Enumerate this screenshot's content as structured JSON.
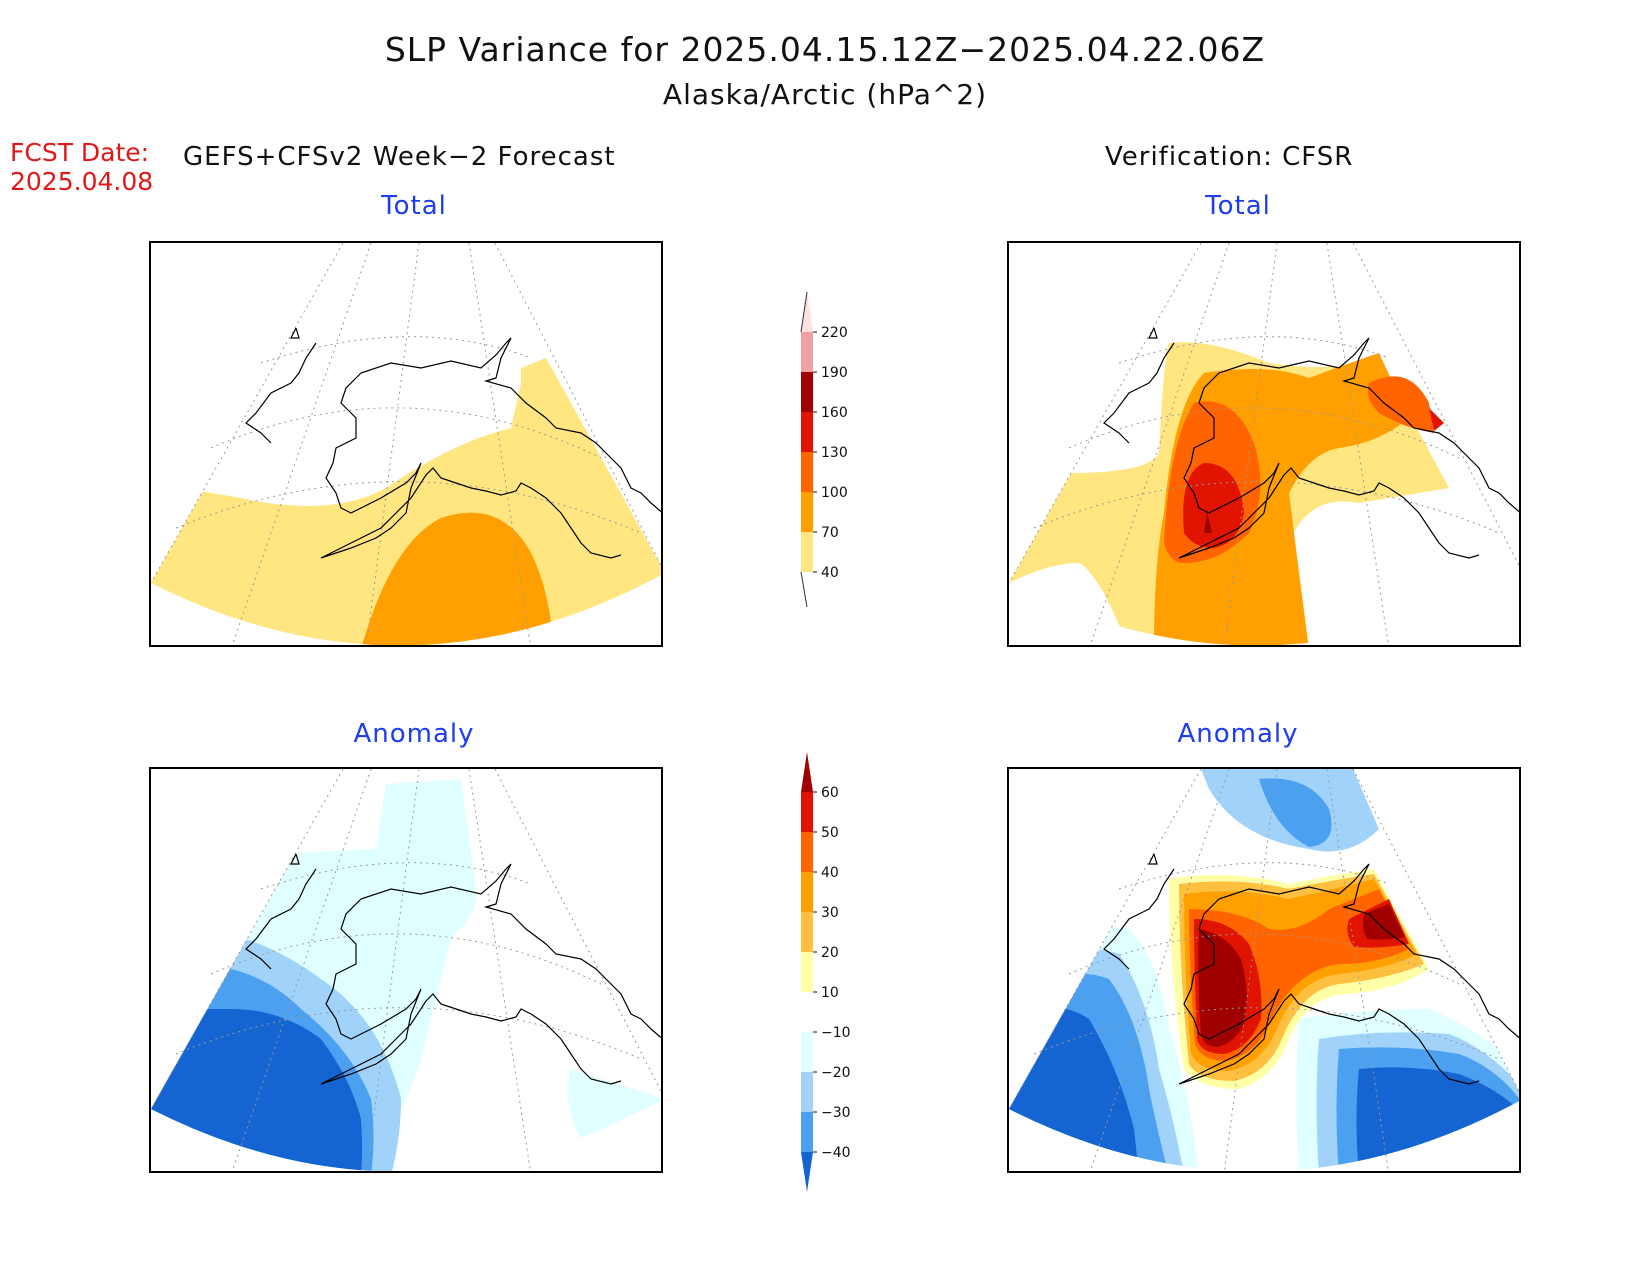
{
  "title": {
    "line1": "SLP Variance for 2025.04.15.12Z−2025.04.22.06Z",
    "line2": "Alaska/Arctic (hPa^2)"
  },
  "forecast": {
    "label": "FCST Date:",
    "date": "2025.04.08",
    "model": "GEFS+CFSv2 Week−2 Forecast"
  },
  "verification": {
    "label": "Verification: CFSR"
  },
  "panels": {
    "fcst_total": {
      "title": "Total"
    },
    "verif_total": {
      "title": "Total"
    },
    "fcst_anom": {
      "title": "Anomaly"
    },
    "verif_anom": {
      "title": "Anomaly"
    }
  },
  "total_colorbar": {
    "levels": [
      "40",
      "70",
      "100",
      "130",
      "160",
      "190",
      "220"
    ],
    "colors": [
      "#ffe680",
      "#ffa000",
      "#ff6400",
      "#e01400",
      "#a00000",
      "#f0a0a0",
      "#ffe0e0"
    ]
  },
  "anomaly_colorbar": {
    "levels": [
      "60",
      "50",
      "40",
      "30",
      "20",
      "10",
      "−10",
      "−20",
      "−30",
      "−40"
    ],
    "colors_top_to_bottom": [
      "#a00000",
      "#e01400",
      "#ff6400",
      "#ffa000",
      "#ffc040",
      "#ffffa8",
      "#ffffff",
      "#e0ffff",
      "#a0d2fa",
      "#4ba0f0",
      "#1464d2"
    ]
  }
}
